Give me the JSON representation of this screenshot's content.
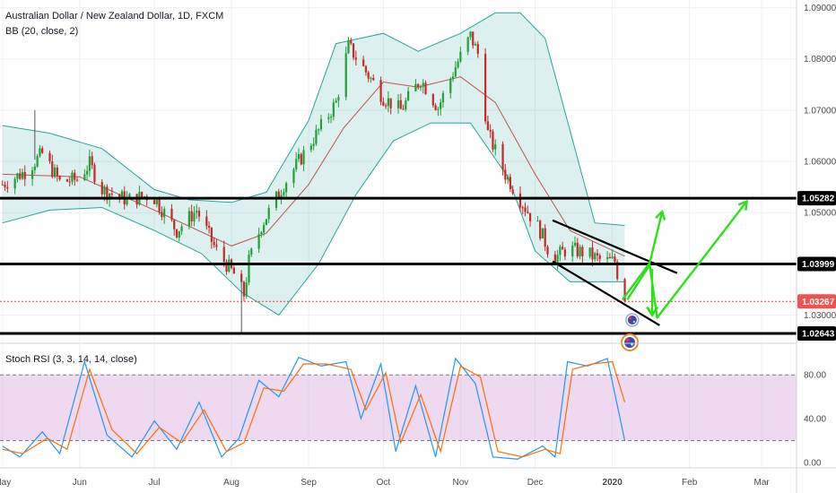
{
  "chart_data": [
    {
      "type": "candlestick",
      "title": "Australian Dollar / New Zealand Dollar, 1D, FXCM",
      "indicator_label": "BB (20, close, 2)",
      "xlabel": "",
      "ylabel": "",
      "ylim": [
        1.0245,
        1.0915
      ],
      "y_ticks": [
        "1.09000",
        "1.08000",
        "1.07000",
        "1.06000",
        "1.05000",
        "1.03000"
      ],
      "y_tick_values": [
        1.09,
        1.08,
        1.07,
        1.06,
        1.05,
        1.03
      ],
      "x_tick_labels": [
        "May",
        "Jun",
        "Jul",
        "Aug",
        "Sep",
        "Oct",
        "Nov",
        "Dec",
        "2020",
        "Feb",
        "Mar"
      ],
      "x_tick_dates": [
        "2019-05-01",
        "2019-06-01",
        "2019-07-01",
        "2019-08-01",
        "2019-09-01",
        "2019-10-01",
        "2019-11-01",
        "2019-12-01",
        "2020-01-01",
        "2020-02-01",
        "2020-03-01"
      ],
      "x_range": [
        "2019-04-30",
        "2020-03-15"
      ],
      "price_path": [
        [
          "2019-05-01",
          1.0555
        ],
        [
          "2019-05-10",
          1.058
        ],
        [
          "2019-05-17",
          1.0615
        ],
        [
          "2019-05-24",
          1.056
        ],
        [
          "2019-05-31",
          1.0565
        ],
        [
          "2019-06-05",
          1.0595
        ],
        [
          "2019-06-10",
          1.0545
        ],
        [
          "2019-06-20",
          1.0525
        ],
        [
          "2019-06-30",
          1.0535
        ],
        [
          "2019-07-10",
          1.0465
        ],
        [
          "2019-07-18",
          1.0505
        ],
        [
          "2019-07-26",
          1.0425
        ],
        [
          "2019-08-02",
          1.038
        ],
        [
          "2019-08-06",
          1.034
        ],
        [
          "2019-08-08",
          1.0405
        ],
        [
          "2019-08-13",
          1.0475
        ],
        [
          "2019-08-22",
          1.0555
        ],
        [
          "2019-08-30",
          1.0615
        ],
        [
          "2019-09-05",
          1.066
        ],
        [
          "2019-09-12",
          1.0715
        ],
        [
          "2019-09-17",
          1.0825
        ],
        [
          "2019-09-24",
          1.0775
        ],
        [
          "2019-10-01",
          1.0725
        ],
        [
          "2019-10-08",
          1.07
        ],
        [
          "2019-10-16",
          1.076
        ],
        [
          "2019-10-23",
          1.0705
        ],
        [
          "2019-10-30",
          1.0785
        ],
        [
          "2019-11-05",
          1.0845
        ],
        [
          "2019-11-08",
          1.081
        ],
        [
          "2019-11-12",
          1.0655
        ],
        [
          "2019-11-19",
          1.0575
        ],
        [
          "2019-11-27",
          1.051
        ],
        [
          "2019-12-03",
          1.0465
        ],
        [
          "2019-12-08",
          1.0408
        ],
        [
          "2019-12-14",
          1.043
        ],
        [
          "2019-12-22",
          1.042
        ],
        [
          "2019-12-28",
          1.0405
        ],
        [
          "2020-01-02",
          1.0405
        ],
        [
          "2020-01-05",
          1.0335
        ],
        [
          "2020-01-06",
          1.03267
        ]
      ],
      "bollinger_upper": [
        [
          "2019-05-01",
          1.067
        ],
        [
          "2019-05-20",
          1.0655
        ],
        [
          "2019-06-10",
          1.0625
        ],
        [
          "2019-07-01",
          1.0545
        ],
        [
          "2019-07-15",
          1.0525
        ],
        [
          "2019-08-01",
          1.052
        ],
        [
          "2019-08-15",
          1.054
        ],
        [
          "2019-09-01",
          1.068
        ],
        [
          "2019-09-12",
          1.083
        ],
        [
          "2019-10-01",
          1.085
        ],
        [
          "2019-10-15",
          1.0815
        ],
        [
          "2019-11-01",
          1.085
        ],
        [
          "2019-11-15",
          1.089
        ],
        [
          "2019-11-25",
          1.089
        ],
        [
          "2019-12-05",
          1.084
        ],
        [
          "2019-12-15",
          1.066
        ],
        [
          "2019-12-25",
          1.048
        ],
        [
          "2020-01-06",
          1.0475
        ]
      ],
      "bollinger_basis": [
        [
          "2019-05-01",
          1.0575
        ],
        [
          "2019-06-01",
          1.057
        ],
        [
          "2019-07-01",
          1.0505
        ],
        [
          "2019-08-01",
          1.0435
        ],
        [
          "2019-08-15",
          1.046
        ],
        [
          "2019-09-01",
          1.0555
        ],
        [
          "2019-09-15",
          1.0665
        ],
        [
          "2019-10-01",
          1.0755
        ],
        [
          "2019-10-15",
          1.0745
        ],
        [
          "2019-11-01",
          1.0765
        ],
        [
          "2019-11-15",
          1.0715
        ],
        [
          "2019-12-01",
          1.0575
        ],
        [
          "2019-12-15",
          1.0465
        ],
        [
          "2020-01-06",
          1.0415
        ]
      ],
      "bollinger_lower": [
        [
          "2019-05-01",
          1.048
        ],
        [
          "2019-05-20",
          1.0505
        ],
        [
          "2019-06-10",
          1.051
        ],
        [
          "2019-07-01",
          1.0465
        ],
        [
          "2019-07-20",
          1.042
        ],
        [
          "2019-08-05",
          1.0345
        ],
        [
          "2019-08-20",
          1.03
        ],
        [
          "2019-09-05",
          1.04
        ],
        [
          "2019-09-20",
          1.0535
        ],
        [
          "2019-10-05",
          1.064
        ],
        [
          "2019-10-20",
          1.0675
        ],
        [
          "2019-11-05",
          1.0675
        ],
        [
          "2019-11-20",
          1.057
        ],
        [
          "2019-12-01",
          1.0425
        ],
        [
          "2019-12-15",
          1.0365
        ],
        [
          "2020-01-06",
          1.0365
        ]
      ],
      "horizontal_levels": [
        {
          "price": 1.05282,
          "label": "1.05282"
        },
        {
          "price": 1.03999,
          "label": "1.03999"
        },
        {
          "price": 1.02643,
          "label": "1.02643"
        }
      ],
      "current_price": {
        "price": 1.03267,
        "label": "1.03267"
      },
      "channel_upper_line": [
        [
          "2019-12-08",
          1.0485
        ],
        [
          "2020-01-27",
          1.0382
        ]
      ],
      "channel_lower_line": [
        [
          "2019-12-08",
          1.0405
        ],
        [
          "2020-01-20",
          1.028
        ]
      ],
      "arrow_paths": [
        [
          [
            "2020-01-05",
            1.033
          ],
          [
            "2020-01-16",
            1.0402
          ],
          [
            "2020-01-21",
            1.0502
          ]
        ],
        [
          [
            "2020-01-07",
            1.033
          ],
          [
            "2020-01-16",
            1.0398
          ],
          [
            "2020-01-19",
            1.0295
          ],
          [
            "2020-02-24",
            1.0522
          ]
        ],
        [
          [
            "2020-01-17",
            1.039
          ],
          [
            "2020-01-17",
            1.03
          ]
        ]
      ],
      "event_icons": [
        "flag-australia-icon",
        "flag-australia-icon"
      ]
    },
    {
      "type": "line",
      "title": "Stoch RSI (3, 3, 14, 14, close)",
      "ylim": [
        -5,
        108
      ],
      "y_ticks": [
        "80.00",
        "40.00",
        "0.00"
      ],
      "y_tick_values": [
        80,
        40,
        0
      ],
      "band": [
        20,
        80
      ],
      "series": [
        {
          "color": "#2196f3",
          "points": [
            [
              "2019-05-01",
              15
            ],
            [
              "2019-05-08",
              5
            ],
            [
              "2019-05-17",
              28
            ],
            [
              "2019-05-24",
              8
            ],
            [
              "2019-06-03",
              92
            ],
            [
              "2019-06-12",
              25
            ],
            [
              "2019-06-22",
              5
            ],
            [
              "2019-07-01",
              38
            ],
            [
              "2019-07-10",
              12
            ],
            [
              "2019-07-19",
              55
            ],
            [
              "2019-07-28",
              5
            ],
            [
              "2019-08-04",
              22
            ],
            [
              "2019-08-12",
              75
            ],
            [
              "2019-08-20",
              60
            ],
            [
              "2019-08-28",
              96
            ],
            [
              "2019-09-06",
              88
            ],
            [
              "2019-09-16",
              92
            ],
            [
              "2019-09-22",
              40
            ],
            [
              "2019-09-30",
              90
            ],
            [
              "2019-10-06",
              10
            ],
            [
              "2019-10-14",
              70
            ],
            [
              "2019-10-22",
              5
            ],
            [
              "2019-10-30",
              95
            ],
            [
              "2019-11-07",
              72
            ],
            [
              "2019-11-14",
              5
            ],
            [
              "2019-11-24",
              3
            ],
            [
              "2019-12-04",
              15
            ],
            [
              "2019-12-09",
              5
            ],
            [
              "2019-12-14",
              92
            ],
            [
              "2019-12-22",
              88
            ],
            [
              "2019-12-30",
              95
            ],
            [
              "2020-01-06",
              20
            ]
          ]
        },
        {
          "color": "#ff6d00",
          "points": [
            [
              "2019-05-01",
              12
            ],
            [
              "2019-05-09",
              8
            ],
            [
              "2019-05-19",
              22
            ],
            [
              "2019-05-27",
              12
            ],
            [
              "2019-06-05",
              85
            ],
            [
              "2019-06-14",
              30
            ],
            [
              "2019-06-24",
              8
            ],
            [
              "2019-07-03",
              32
            ],
            [
              "2019-07-12",
              18
            ],
            [
              "2019-07-21",
              48
            ],
            [
              "2019-07-30",
              10
            ],
            [
              "2019-08-06",
              18
            ],
            [
              "2019-08-14",
              68
            ],
            [
              "2019-08-22",
              65
            ],
            [
              "2019-08-30",
              90
            ],
            [
              "2019-09-08",
              90
            ],
            [
              "2019-09-18",
              85
            ],
            [
              "2019-09-24",
              48
            ],
            [
              "2019-10-02",
              82
            ],
            [
              "2019-10-08",
              18
            ],
            [
              "2019-10-16",
              62
            ],
            [
              "2019-10-24",
              10
            ],
            [
              "2019-11-01",
              88
            ],
            [
              "2019-11-09",
              78
            ],
            [
              "2019-11-16",
              10
            ],
            [
              "2019-11-26",
              5
            ],
            [
              "2019-12-05",
              12
            ],
            [
              "2019-12-11",
              8
            ],
            [
              "2019-12-16",
              85
            ],
            [
              "2019-12-24",
              90
            ],
            [
              "2020-01-01",
              92
            ],
            [
              "2020-01-06",
              55
            ]
          ]
        }
      ]
    }
  ]
}
